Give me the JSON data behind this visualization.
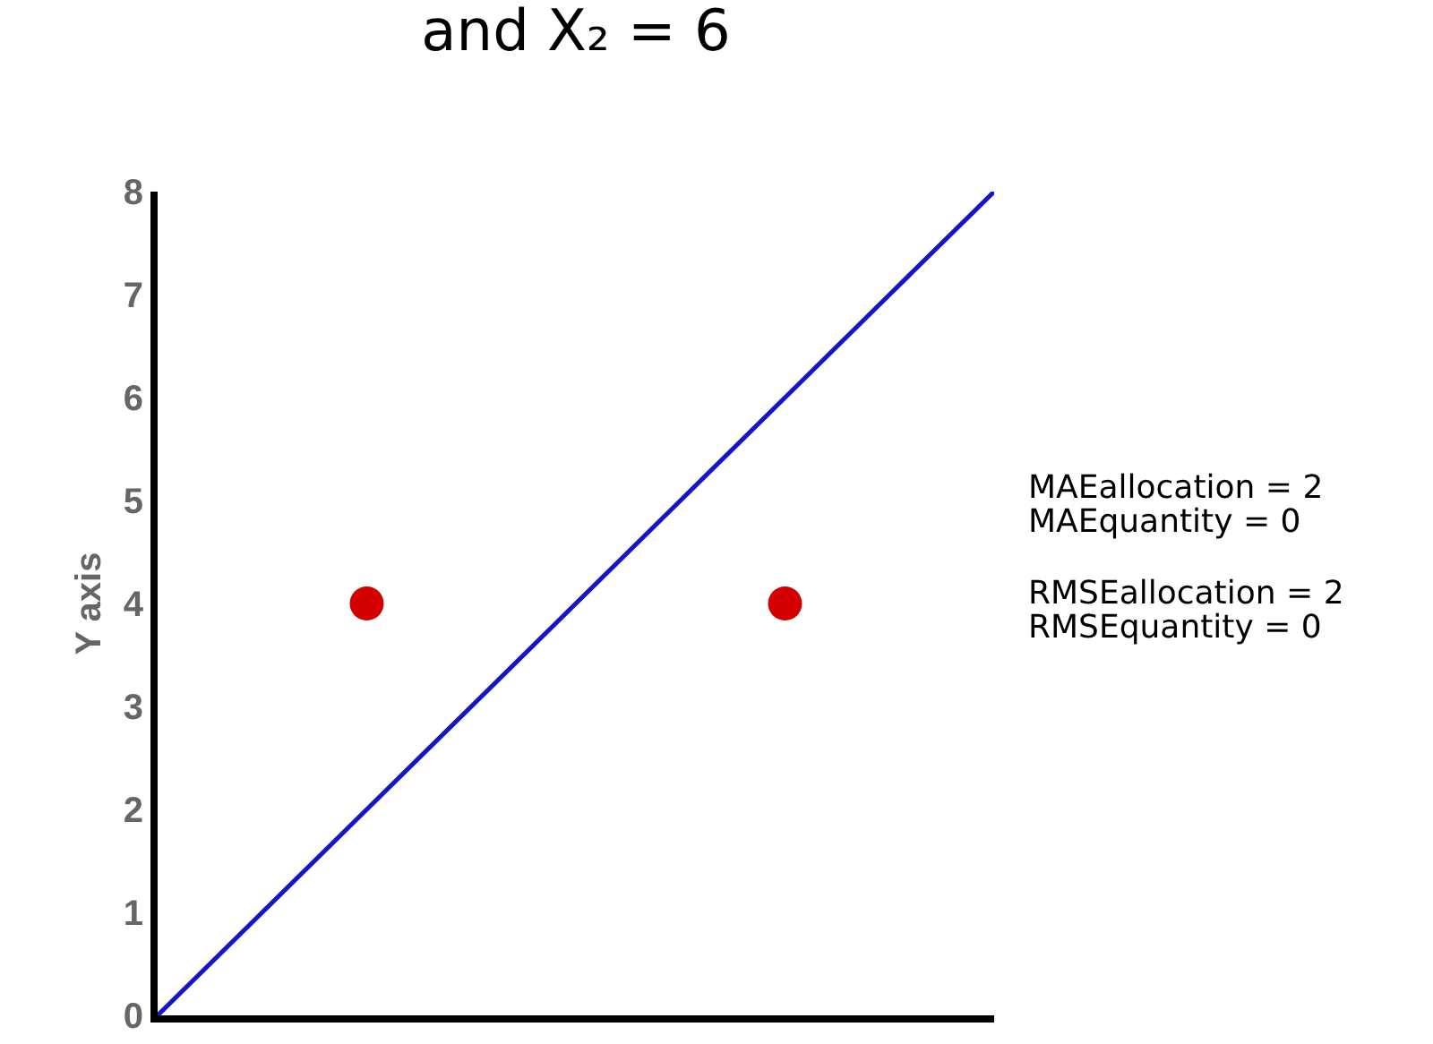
{
  "chart_data": {
    "type": "line",
    "title": "and X₂ = 6",
    "ylabel": "Y axis",
    "categories": [
      null,
      null,
      null,
      null,
      null,
      null,
      null,
      null,
      null
    ],
    "ylim": [
      0,
      8
    ],
    "yticks": [
      0,
      1,
      2,
      3,
      4,
      5,
      6,
      7,
      8
    ],
    "tick_labels": "y",
    "grid": false,
    "series": [
      {
        "color": "#1414c8",
        "values": [
          0,
          1,
          2,
          3,
          4,
          5,
          6,
          7,
          8
        ],
        "line_style": "solid"
      },
      {
        "type": "scatter",
        "marker": "circle",
        "color": "#d40000",
        "values": [
          null,
          null,
          4,
          null,
          null,
          null,
          4,
          null,
          null
        ]
      }
    ],
    "annotations": [
      "MAEallocation = 2",
      "MAEquantity = 0",
      "RMSEallocation = 2",
      "RMSEquantity = 0"
    ]
  }
}
